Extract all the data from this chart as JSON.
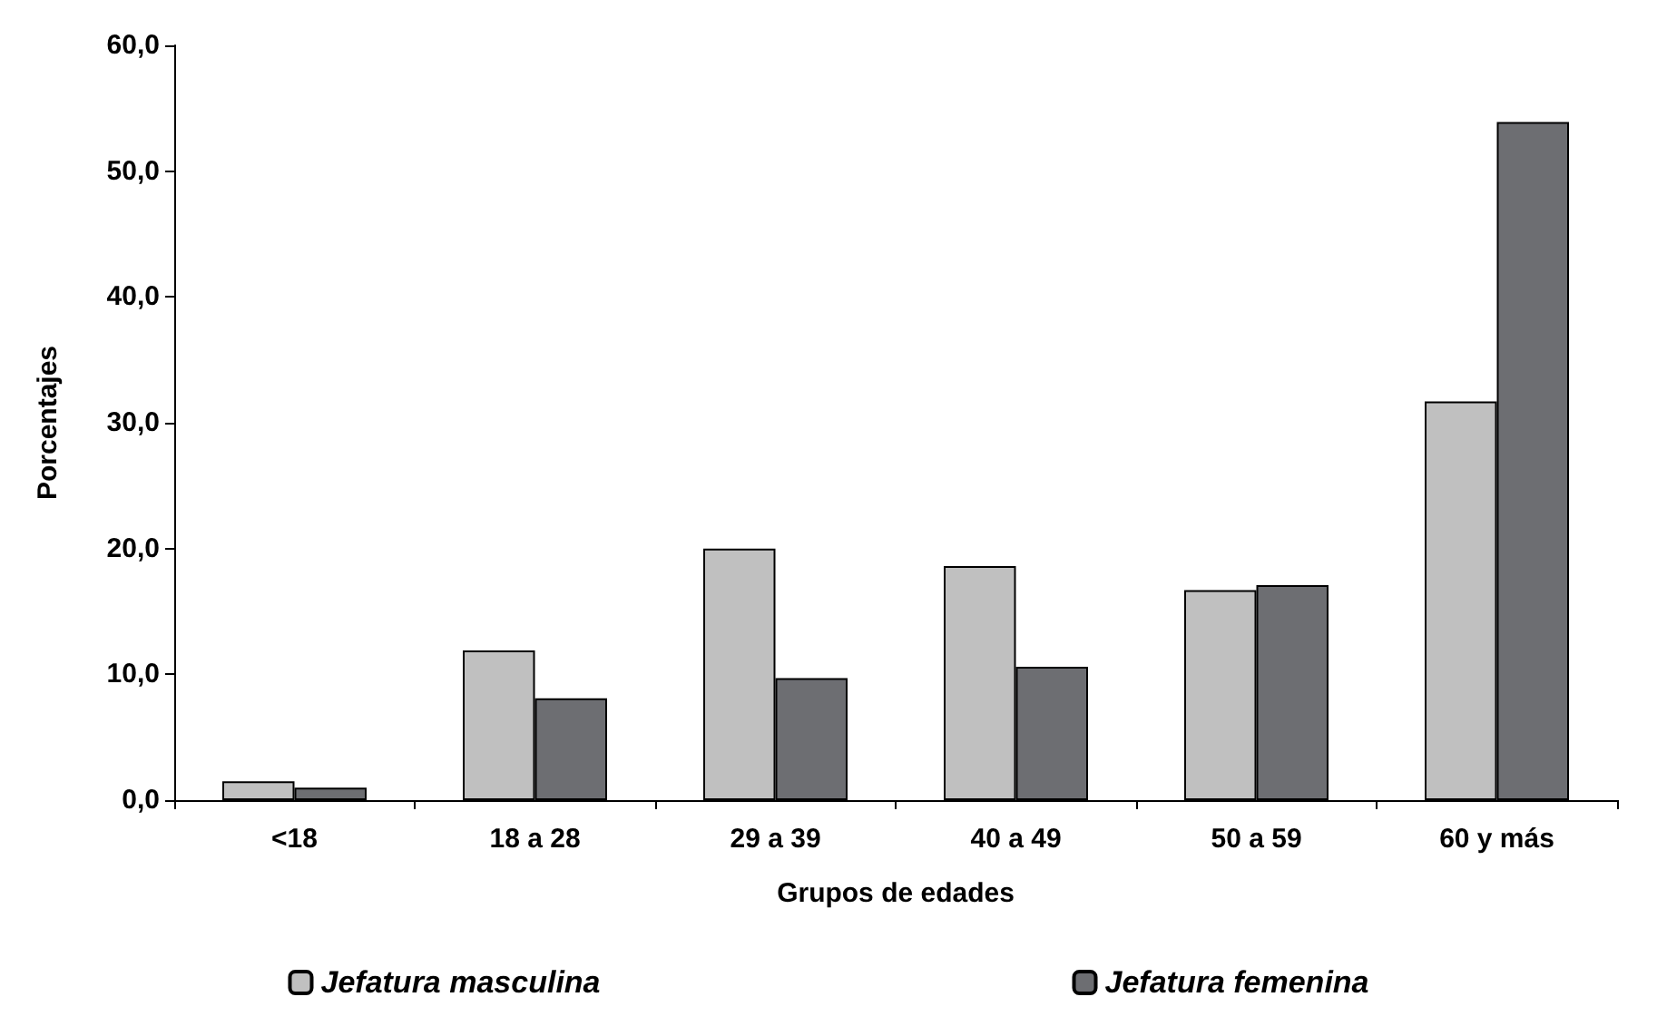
{
  "chart_data": {
    "type": "bar",
    "xlabel": "Grupos de edades",
    "ylabel": "Porcentajes",
    "categories": [
      "<18",
      "18 a 28",
      "29 a 39",
      "40 a 49",
      "50 a 59",
      "60 y más"
    ],
    "series": [
      {
        "name": "Jefatura masculina",
        "color": "#c0c0c0",
        "values": [
          1.5,
          11.9,
          20.0,
          18.6,
          16.7,
          31.7
        ]
      },
      {
        "name": "Jefatura femenina",
        "color": "#6d6e72",
        "values": [
          1.0,
          8.1,
          9.7,
          10.6,
          17.1,
          53.9
        ]
      }
    ],
    "ylim": [
      0,
      60
    ],
    "yticks": [
      {
        "value": 0,
        "label": "0,0"
      },
      {
        "value": 10,
        "label": "10,0"
      },
      {
        "value": 20,
        "label": "20,0"
      },
      {
        "value": 30,
        "label": "30,0"
      },
      {
        "value": 40,
        "label": "40,0"
      },
      {
        "value": 50,
        "label": "50,0"
      },
      {
        "value": 60,
        "label": "60,0"
      }
    ],
    "grid": false,
    "legend": "bottom"
  }
}
